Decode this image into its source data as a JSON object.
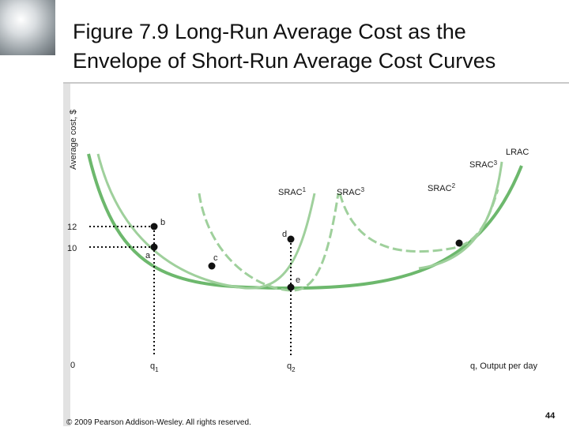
{
  "slide": {
    "title_line1": "Figure 7.9 Long-Run Average Cost as the",
    "title_line2": "Envelope of Short-Run Average Cost Curves",
    "footer": "© 2009 Pearson Addison-Wesley. All rights reserved.",
    "page_number": "44"
  },
  "chart_data": {
    "type": "line",
    "title": "Figure 7.9 Long-Run Average Cost as the Envelope of Short-Run Average Cost Curves",
    "ylabel": "Average cost, $",
    "xlabel": "q, Output per day",
    "origin_label": "0",
    "x_ticks": [
      {
        "label": "q",
        "sub": "1",
        "x": 1
      },
      {
        "label": "q",
        "sub": "2",
        "x": 2
      }
    ],
    "y_ticks": [
      {
        "label": "12",
        "y": 12
      },
      {
        "label": "10",
        "y": 10
      }
    ],
    "colors": {
      "lrac": "#6db86d",
      "srac": "#9fd09c",
      "guides": "#111111"
    },
    "series": [
      {
        "name": "LRAC",
        "sub": "",
        "style": "solid-dark"
      },
      {
        "name": "SRAC",
        "sub": "1",
        "style": "solid-light"
      },
      {
        "name": "SRAC",
        "sub": "2",
        "style": "dashed"
      },
      {
        "name": "SRAC",
        "sub": "3",
        "style": "dashed"
      },
      {
        "name": "SRAC",
        "sub": "3",
        "style": "solid-light"
      }
    ],
    "points": [
      {
        "label": "a",
        "x": 1,
        "y": 10
      },
      {
        "label": "b",
        "x": 1,
        "y": 12
      },
      {
        "label": "c",
        "x": 1.45,
        "y": 9
      },
      {
        "label": "d",
        "x": 2,
        "y": 11.7
      },
      {
        "label": "e",
        "x": 2,
        "y": 8.3
      },
      {
        "label": "",
        "x": 3.3,
        "y": 11.7
      }
    ]
  }
}
